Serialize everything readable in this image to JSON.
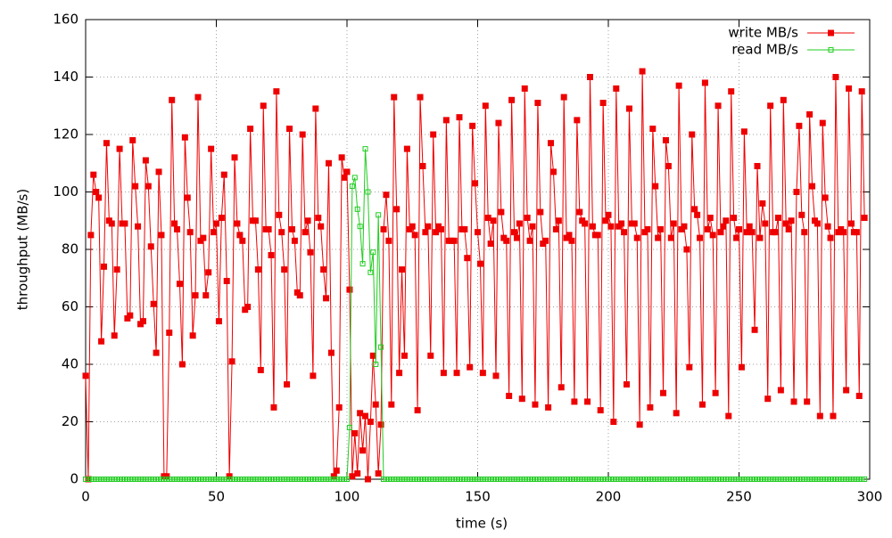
{
  "chart_data": {
    "type": "line",
    "xlabel": "time (s)",
    "ylabel": "throughput (MB/s)",
    "xlim": [
      0,
      300
    ],
    "xticks": [
      0,
      50,
      100,
      150,
      200,
      250,
      300
    ],
    "ylim": [
      0,
      160
    ],
    "yticks": [
      0,
      20,
      40,
      60,
      80,
      100,
      120,
      140,
      160
    ],
    "grid": true,
    "legend": "upper right",
    "x": [
      0,
      1,
      2,
      3,
      4,
      5,
      6,
      7,
      8,
      9,
      10,
      11,
      12,
      13,
      14,
      15,
      16,
      17,
      18,
      19,
      20,
      21,
      22,
      23,
      24,
      25,
      26,
      27,
      28,
      29,
      30,
      31,
      32,
      33,
      34,
      35,
      36,
      37,
      38,
      39,
      40,
      41,
      42,
      43,
      44,
      45,
      46,
      47,
      48,
      49,
      50,
      51,
      52,
      53,
      54,
      55,
      56,
      57,
      58,
      59,
      60,
      61,
      62,
      63,
      64,
      65,
      66,
      67,
      68,
      69,
      70,
      71,
      72,
      73,
      74,
      75,
      76,
      77,
      78,
      79,
      80,
      81,
      82,
      83,
      84,
      85,
      86,
      87,
      88,
      89,
      90,
      91,
      92,
      93,
      94,
      95,
      96,
      97,
      98,
      99,
      100,
      101,
      102,
      103,
      104,
      105,
      106,
      107,
      108,
      109,
      110,
      111,
      112,
      113,
      114,
      115,
      116,
      117,
      118,
      119,
      120,
      121,
      122,
      123,
      124,
      125,
      126,
      127,
      128,
      129,
      130,
      131,
      132,
      133,
      134,
      135,
      136,
      137,
      138,
      139,
      140,
      141,
      142,
      143,
      144,
      145,
      146,
      147,
      148,
      149,
      150,
      151,
      152,
      153,
      154,
      155,
      156,
      157,
      158,
      159,
      160,
      161,
      162,
      163,
      164,
      165,
      166,
      167,
      168,
      169,
      170,
      171,
      172,
      173,
      174,
      175,
      176,
      177,
      178,
      179,
      180,
      181,
      182,
      183,
      184,
      185,
      186,
      187,
      188,
      189,
      190,
      191,
      192,
      193,
      194,
      195,
      196,
      197,
      198,
      199,
      200,
      201,
      202,
      203,
      204,
      205,
      206,
      207,
      208,
      209,
      210,
      211,
      212,
      213,
      214,
      215,
      216,
      217,
      218,
      219,
      220,
      221,
      222,
      223,
      224,
      225,
      226,
      227,
      228,
      229,
      230,
      231,
      232,
      233,
      234,
      235,
      236,
      237,
      238,
      239,
      240,
      241,
      242,
      243,
      244,
      245,
      246,
      247,
      248,
      249,
      250,
      251,
      252,
      253,
      254,
      255,
      256,
      257,
      258,
      259,
      260,
      261,
      262,
      263,
      264,
      265,
      266,
      267,
      268,
      269,
      270,
      271,
      272,
      273,
      274,
      275,
      276,
      277,
      278,
      279,
      280,
      281,
      282,
      283,
      284,
      285,
      286,
      287,
      288,
      289,
      290,
      291,
      292,
      293,
      294,
      295,
      296,
      297,
      298
    ],
    "series": [
      {
        "name": "write MB/s",
        "color": "#ee0000",
        "marker": "filled-square",
        "values": [
          36,
          0,
          85,
          106,
          100,
          98,
          48,
          74,
          117,
          90,
          89,
          50,
          73,
          115,
          89,
          89,
          56,
          57,
          118,
          102,
          88,
          54,
          55,
          111,
          102,
          81,
          61,
          44,
          107,
          85,
          1,
          1,
          51,
          132,
          89,
          87,
          68,
          40,
          119,
          98,
          86,
          50,
          64,
          133,
          83,
          84,
          64,
          72,
          115,
          86,
          89,
          55,
          91,
          106,
          69,
          1,
          41,
          112,
          89,
          85,
          83,
          59,
          60,
          122,
          90,
          90,
          73,
          38,
          130,
          87,
          87,
          78,
          25,
          135,
          92,
          86,
          73,
          33,
          122,
          87,
          83,
          65,
          64,
          120,
          86,
          90,
          79,
          36,
          129,
          91,
          88,
          73,
          63,
          110,
          44,
          1,
          3,
          25,
          112,
          105,
          107,
          66,
          1,
          16,
          2,
          23,
          10,
          22,
          0,
          20,
          43,
          26,
          2,
          19,
          87,
          99,
          83,
          26,
          133,
          94,
          37,
          73,
          43,
          115,
          87,
          88,
          85,
          24,
          133,
          109,
          86,
          88,
          43,
          120,
          86,
          88,
          87,
          37,
          125,
          83,
          83,
          83,
          37,
          126,
          87,
          87,
          77,
          39,
          123,
          103,
          86,
          75,
          37,
          130,
          91,
          82,
          90,
          36,
          124,
          93,
          84,
          83,
          29,
          132,
          86,
          84,
          89,
          28,
          136,
          91,
          83,
          88,
          26,
          131,
          93,
          82,
          83,
          25,
          117,
          107,
          87,
          90,
          32,
          133,
          84,
          85,
          83,
          27,
          125,
          93,
          90,
          89,
          27,
          140,
          88,
          85,
          85,
          24,
          131,
          90,
          92,
          88,
          20,
          136,
          88,
          89,
          86,
          33,
          129,
          89,
          89,
          84,
          19,
          142,
          86,
          87,
          25,
          122,
          102,
          84,
          87,
          30,
          118,
          109,
          84,
          89,
          23,
          137,
          87,
          88,
          80,
          39,
          120,
          94,
          92,
          84,
          26,
          138,
          87,
          91,
          85,
          30,
          130,
          86,
          88,
          90,
          22,
          135,
          91,
          84,
          87,
          39,
          121,
          86,
          88,
          86,
          52,
          109,
          84,
          96,
          89,
          28,
          130,
          86,
          86,
          91,
          31,
          132,
          89,
          87,
          90,
          27,
          100,
          123,
          92,
          86,
          27,
          127,
          102,
          90,
          89,
          22,
          124,
          98,
          88,
          84,
          22,
          140,
          86,
          87,
          86,
          31,
          136,
          89,
          86,
          86,
          29,
          135,
          91
        ]
      },
      {
        "name": "read MB/s",
        "color": "#22cc22",
        "marker": "open-square",
        "values": [
          0,
          0,
          0,
          0,
          0,
          0,
          0,
          0,
          0,
          0,
          0,
          0,
          0,
          0,
          0,
          0,
          0,
          0,
          0,
          0,
          0,
          0,
          0,
          0,
          0,
          0,
          0,
          0,
          0,
          0,
          0,
          0,
          0,
          0,
          0,
          0,
          0,
          0,
          0,
          0,
          0,
          0,
          0,
          0,
          0,
          0,
          0,
          0,
          0,
          0,
          0,
          0,
          0,
          0,
          0,
          0,
          0,
          0,
          0,
          0,
          0,
          0,
          0,
          0,
          0,
          0,
          0,
          0,
          0,
          0,
          0,
          0,
          0,
          0,
          0,
          0,
          0,
          0,
          0,
          0,
          0,
          0,
          0,
          0,
          0,
          0,
          0,
          0,
          0,
          0,
          0,
          0,
          0,
          0,
          0,
          0,
          0,
          0,
          0,
          0,
          0,
          18,
          102,
          105,
          94,
          88,
          75,
          115,
          100,
          72,
          79,
          40,
          92,
          46,
          0,
          0,
          0,
          0,
          0,
          0,
          0,
          0,
          0,
          0,
          0,
          0,
          0,
          0,
          0,
          0,
          0,
          0,
          0,
          0,
          0,
          0,
          0,
          0,
          0,
          0,
          0,
          0,
          0,
          0,
          0,
          0,
          0,
          0,
          0,
          0,
          0,
          0,
          0,
          0,
          0,
          0,
          0,
          0,
          0,
          0,
          0,
          0,
          0,
          0,
          0,
          0,
          0,
          0,
          0,
          0,
          0,
          0,
          0,
          0,
          0,
          0,
          0,
          0,
          0,
          0,
          0,
          0,
          0,
          0,
          0,
          0,
          0,
          0,
          0,
          0,
          0,
          0,
          0,
          0,
          0,
          0,
          0,
          0,
          0,
          0,
          0,
          0,
          0,
          0,
          0,
          0,
          0,
          0,
          0,
          0,
          0,
          0,
          0,
          0,
          0,
          0,
          0,
          0,
          0,
          0,
          0,
          0,
          0,
          0,
          0,
          0,
          0,
          0,
          0,
          0,
          0,
          0,
          0,
          0,
          0,
          0,
          0,
          0,
          0,
          0,
          0,
          0,
          0,
          0,
          0,
          0,
          0,
          0,
          0,
          0,
          0,
          0,
          0,
          0,
          0,
          0,
          0,
          0,
          0,
          0,
          0,
          0,
          0,
          0,
          0,
          0,
          0,
          0,
          0,
          0,
          0,
          0,
          0,
          0,
          0,
          0,
          0,
          0,
          0,
          0,
          0,
          0,
          0,
          0,
          0,
          0,
          0,
          0,
          0,
          0,
          0,
          0,
          0,
          0,
          0,
          0,
          0,
          0,
          0
        ]
      }
    ]
  }
}
